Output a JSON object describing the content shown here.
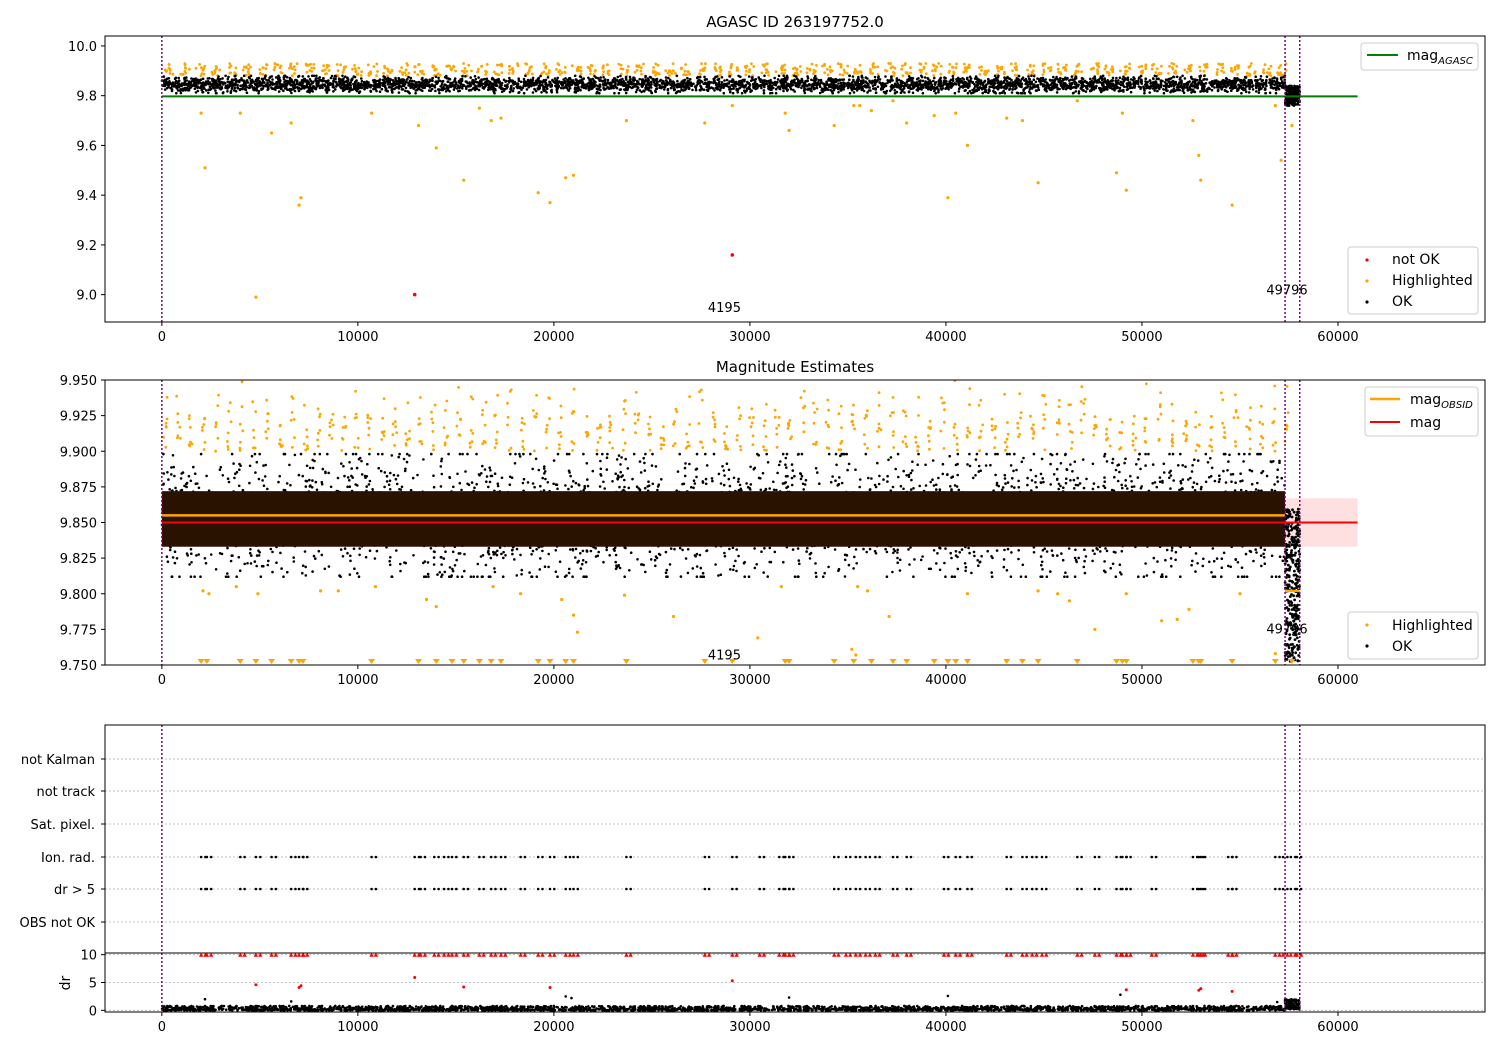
{
  "colors": {
    "ok": "#000000",
    "highlighted": "#ffa500",
    "not_ok": "#ff0000",
    "mag_agasc_line": "#008000",
    "mag_obsid_line": "#ffa500",
    "mag_line": "#ff0000",
    "mag_band": "#ffcccc",
    "obs_vline": "#800080",
    "grid": "#b0b0b0"
  },
  "chart_data": [
    {
      "type": "scatter",
      "title": "AGASC ID 263197752.0",
      "xlabel": "",
      "ylabel": "",
      "xlim": [
        -2900,
        67500
      ],
      "ylim": [
        8.89,
        10.04
      ],
      "xticks": [
        0,
        10000,
        20000,
        30000,
        40000,
        50000,
        60000
      ],
      "xtick_labels": [
        "0",
        "10000",
        "20000",
        "30000",
        "40000",
        "50000",
        "60000"
      ],
      "yticks": [
        9.0,
        9.2,
        9.4,
        9.6,
        9.8,
        10.0
      ],
      "ytick_labels": [
        "9.0",
        "9.2",
        "9.4",
        "9.6",
        "9.8",
        "10.0"
      ],
      "obs_boundaries": [
        0,
        57300,
        58050
      ],
      "obsid_annotations": [
        {
          "text": "4195",
          "x": 28700,
          "y": 8.93
        },
        {
          "text": "49796",
          "x": 57400,
          "y": 9.0
        }
      ],
      "ok_band": {
        "x_start": 0,
        "x_end": 57300,
        "y_low": 9.81,
        "y_high": 9.88
      },
      "ok_tail_band": {
        "x_start": 57300,
        "x_end": 58050,
        "y_low": 9.76,
        "y_high": 9.84
      },
      "highlight_peaks_y": [
        9.88,
        9.93
      ],
      "mag_agasc": {
        "name": "mag_AGASC",
        "y": 9.797,
        "x_start": 0,
        "x_end": 61000
      },
      "highlighted_outliers": [
        [
          2000,
          9.73
        ],
        [
          2200,
          9.51
        ],
        [
          4000,
          9.73
        ],
        [
          4800,
          8.99
        ],
        [
          5600,
          9.65
        ],
        [
          6600,
          9.69
        ],
        [
          7000,
          9.36
        ],
        [
          7100,
          9.39
        ],
        [
          10700,
          9.73
        ],
        [
          13100,
          9.68
        ],
        [
          14000,
          9.59
        ],
        [
          15400,
          9.46
        ],
        [
          16200,
          9.75
        ],
        [
          16800,
          9.7
        ],
        [
          17300,
          9.71
        ],
        [
          19200,
          9.41
        ],
        [
          19800,
          9.37
        ],
        [
          20600,
          9.47
        ],
        [
          21000,
          9.48
        ],
        [
          23700,
          9.7
        ],
        [
          27700,
          9.69
        ],
        [
          29100,
          9.76
        ],
        [
          31800,
          9.73
        ],
        [
          32000,
          9.66
        ],
        [
          34300,
          9.68
        ],
        [
          35300,
          9.76
        ],
        [
          35600,
          9.76
        ],
        [
          36200,
          9.74
        ],
        [
          37300,
          9.78
        ],
        [
          38000,
          9.69
        ],
        [
          39400,
          9.72
        ],
        [
          40100,
          9.39
        ],
        [
          40500,
          9.73
        ],
        [
          41100,
          9.6
        ],
        [
          43100,
          9.71
        ],
        [
          43900,
          9.7
        ],
        [
          44700,
          9.45
        ],
        [
          46700,
          9.78
        ],
        [
          48700,
          9.49
        ],
        [
          49000,
          9.73
        ],
        [
          49200,
          9.42
        ],
        [
          52600,
          9.7
        ],
        [
          52900,
          9.56
        ],
        [
          53000,
          9.46
        ],
        [
          54600,
          9.36
        ],
        [
          56800,
          9.76
        ],
        [
          57100,
          9.54
        ],
        [
          57650,
          9.68
        ]
      ],
      "not_ok_points": [
        [
          12900,
          9.0
        ],
        [
          29100,
          9.16
        ]
      ],
      "legend_top": {
        "placement": "upper right",
        "entries": [
          "mag_AGASC"
        ]
      },
      "legend_bottom": {
        "placement": "lower right",
        "entries": [
          "not OK",
          "Highlighted",
          "OK"
        ]
      }
    },
    {
      "type": "scatter",
      "title": "Magnitude Estimates",
      "xlabel": "",
      "ylabel": "",
      "xlim": [
        -2900,
        67500
      ],
      "ylim": [
        9.75,
        9.95
      ],
      "xticks": [
        0,
        10000,
        20000,
        30000,
        40000,
        50000,
        60000
      ],
      "xtick_labels": [
        "0",
        "10000",
        "20000",
        "30000",
        "40000",
        "50000",
        "60000"
      ],
      "yticks": [
        9.75,
        9.775,
        9.8,
        9.825,
        9.85,
        9.875,
        9.9,
        9.925,
        9.95
      ],
      "ytick_labels": [
        "9.750",
        "9.775",
        "9.800",
        "9.825",
        "9.850",
        "9.875",
        "9.900",
        "9.925",
        "9.950"
      ],
      "obs_boundaries": [
        0,
        57300,
        58050
      ],
      "obsid_annotations": [
        {
          "text": "4195",
          "x": 28700,
          "y": 9.754
        },
        {
          "text": "49796",
          "x": 57400,
          "y": 9.772
        }
      ],
      "mag": {
        "name": "mag",
        "y": 9.85,
        "x_start": 0,
        "x_end": 61000,
        "band_low": 9.833,
        "band_high": 9.867
      },
      "mag_obsid": {
        "name": "mag_OBSID",
        "segments": [
          {
            "x_start": 0,
            "x_end": 57300,
            "y": 9.855
          },
          {
            "x_start": 57300,
            "x_end": 58050,
            "y": 9.802
          }
        ]
      },
      "ok_core_band": {
        "x_start": 0,
        "x_end": 57300,
        "y_low": 9.833,
        "y_high": 9.872
      },
      "ok_scatter_band": {
        "x_start": 0,
        "x_end": 57300,
        "y_low": 9.812,
        "y_high": 9.898
      },
      "ok_tail_band": {
        "x_start": 57300,
        "x_end": 58050,
        "y_low": 9.752,
        "y_high": 9.86
      },
      "highlight_range": [
        9.9,
        9.95
      ],
      "highlighted_low_points": [
        [
          2100,
          9.802
        ],
        [
          2400,
          9.8
        ],
        [
          3800,
          9.805
        ],
        [
          4900,
          9.8
        ],
        [
          8100,
          9.802
        ],
        [
          9000,
          9.802
        ],
        [
          10900,
          9.805
        ],
        [
          13500,
          9.796
        ],
        [
          14000,
          9.791
        ],
        [
          16900,
          9.805
        ],
        [
          18300,
          9.8
        ],
        [
          20400,
          9.796
        ],
        [
          21000,
          9.785
        ],
        [
          21200,
          9.773
        ],
        [
          23600,
          9.799
        ],
        [
          26100,
          9.784
        ],
        [
          30400,
          9.769
        ],
        [
          31600,
          9.805
        ],
        [
          35500,
          9.805
        ],
        [
          36000,
          9.802
        ],
        [
          37100,
          9.784
        ],
        [
          41100,
          9.8
        ],
        [
          44700,
          9.802
        ],
        [
          45700,
          9.8
        ],
        [
          46300,
          9.795
        ],
        [
          47600,
          9.775
        ],
        [
          49200,
          9.8
        ],
        [
          51000,
          9.781
        ],
        [
          51800,
          9.782
        ],
        [
          52400,
          9.789
        ],
        [
          55000,
          9.8
        ],
        [
          35200,
          9.761
        ],
        [
          35400,
          9.757
        ],
        [
          56800,
          9.758
        ]
      ],
      "floor_markers_x": [
        2000,
        2300,
        4000,
        4800,
        5600,
        6600,
        7000,
        7200,
        10700,
        13100,
        14000,
        14800,
        15400,
        16200,
        16800,
        17300,
        19200,
        19800,
        20600,
        21000,
        23700,
        27700,
        29100,
        31800,
        32000,
        34300,
        35300,
        36200,
        37300,
        38000,
        39400,
        40100,
        40500,
        41100,
        43100,
        43900,
        44700,
        46700,
        48700,
        49000,
        49200,
        52600,
        52900,
        53000,
        54600,
        56800,
        57650
      ],
      "legend_top": {
        "placement": "upper right",
        "entries": [
          "mag_OBSID",
          "mag"
        ]
      },
      "legend_bottom": {
        "placement": "lower right",
        "entries": [
          "Highlighted",
          "OK"
        ]
      }
    },
    {
      "type": "scatter",
      "title": "",
      "xlabel": "",
      "ylabel": "",
      "xlim": [
        -2900,
        67500
      ],
      "flag_rows": [
        "not Kalman",
        "not track",
        "Sat. pixel.",
        "Ion. rad.",
        "dr > 5",
        "OBS not OK"
      ],
      "obs_boundaries": [
        0,
        57300,
        58050
      ],
      "flagged_x": [
        2000,
        2300,
        4000,
        4800,
        5600,
        6600,
        7000,
        7200,
        10700,
        12900,
        13200,
        13900,
        14400,
        14800,
        15400,
        16200,
        16800,
        17300,
        18300,
        19200,
        19800,
        20600,
        21000,
        23700,
        27700,
        29100,
        30500,
        31500,
        31800,
        32000,
        34300,
        34900,
        35400,
        35900,
        36400,
        37300,
        38000,
        39900,
        40500,
        41100,
        43100,
        43900,
        44400,
        44900,
        46700,
        47600,
        48700,
        49000,
        49200,
        50500,
        52600,
        52900,
        53000,
        54400,
        54600,
        56800,
        57200,
        57600,
        57900
      ]
    },
    {
      "type": "scatter",
      "title": "",
      "xlabel": "",
      "ylabel": "dr",
      "xlim": [
        -2900,
        67500
      ],
      "ylim": [
        -0.3,
        10.3
      ],
      "xticks": [
        0,
        10000,
        20000,
        30000,
        40000,
        50000,
        60000
      ],
      "xtick_labels": [
        "0",
        "10000",
        "20000",
        "30000",
        "40000",
        "50000",
        "60000"
      ],
      "yticks": [
        0,
        5,
        10
      ],
      "ytick_labels": [
        "0",
        "5",
        "10"
      ],
      "obs_boundaries": [
        0,
        57300,
        58050
      ],
      "ok_band": {
        "x_start": 0,
        "x_end": 57300,
        "y_low": 0,
        "y_high": 0.8
      },
      "ok_tail_band": {
        "x_start": 57300,
        "x_end": 58050,
        "y_low": 0.2,
        "y_high": 2.0
      },
      "capped_value": 10,
      "red_points": [
        [
          12900,
          5.9
        ],
        [
          29100,
          5.3
        ],
        [
          4800,
          4.6
        ],
        [
          7000,
          4.1
        ],
        [
          7100,
          4.4
        ],
        [
          15400,
          4.2
        ],
        [
          19800,
          4.1
        ],
        [
          49200,
          3.7
        ],
        [
          52900,
          3.6
        ],
        [
          53000,
          3.9
        ],
        [
          54600,
          3.4
        ]
      ],
      "black_scatter": [
        [
          2200,
          2.0
        ],
        [
          6600,
          1.6
        ],
        [
          20600,
          2.5
        ],
        [
          20900,
          2.2
        ],
        [
          32000,
          2.3
        ],
        [
          40100,
          2.6
        ],
        [
          48900,
          2.8
        ],
        [
          56900,
          1.5
        ]
      ]
    }
  ]
}
